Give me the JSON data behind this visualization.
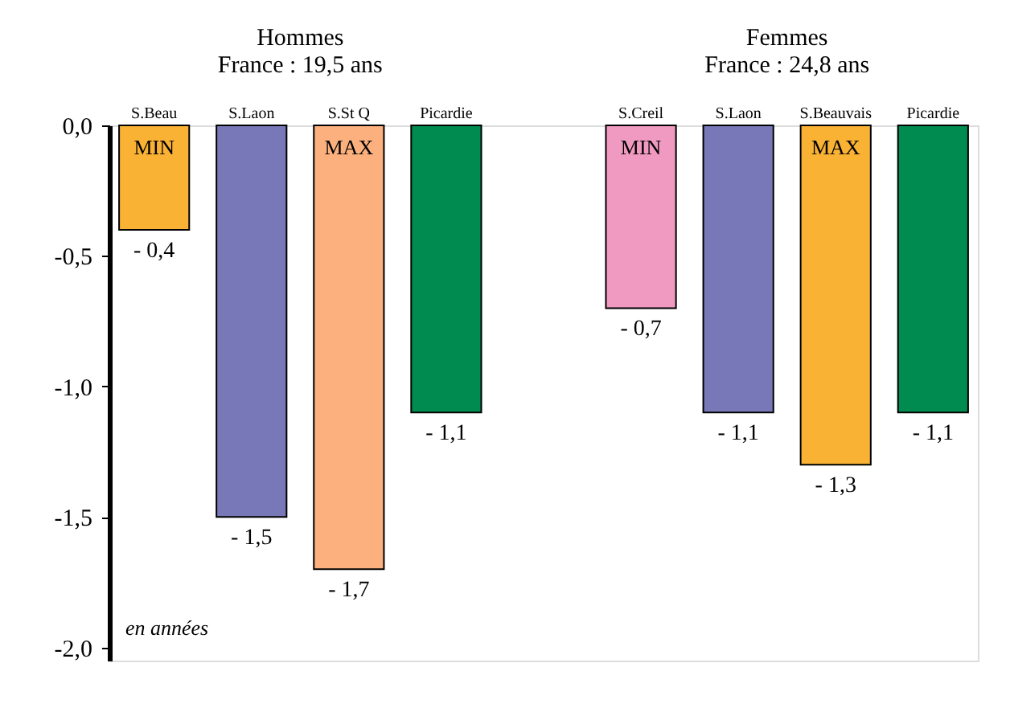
{
  "chart_data": {
    "type": "bar",
    "categories": [
      "S.Beau",
      "S.Laon",
      "S.St Q",
      "Picardie",
      null,
      "S.Creil",
      "S.Laon",
      "S.Beauvais",
      "Picardie"
    ],
    "values": [
      -0.4,
      -1.5,
      -1.7,
      -1.1,
      null,
      -0.7,
      -1.1,
      -1.3,
      -1.1
    ],
    "colors": [
      "#f9b233",
      "#7878b8",
      "#fbb07e",
      "#008c50",
      "#ffffff",
      "#f19ac1",
      "#7878b8",
      "#f9b233",
      "#008c50"
    ],
    "value_labels": [
      "- 0,4",
      "- 1,5",
      "- 1,7",
      "- 1,1",
      null,
      "- 0,7",
      "- 1,1",
      "- 1,3",
      "- 1,1"
    ],
    "ylim": [
      -2.05,
      0.0
    ],
    "yticks": [
      {
        "value": 0.0,
        "label": "0,0"
      },
      {
        "value": -0.5,
        "label": "-0,5"
      },
      {
        "value": -1.0,
        "label": "-1,0"
      },
      {
        "value": -1.5,
        "label": "-1,5"
      },
      {
        "value": -2.0,
        "label": "-2,0"
      }
    ],
    "annotations": [
      "Hommes\nFrance : 19,5 ans",
      "Femmes\nFrance : 24,8 ans",
      "en années",
      "MIN",
      "MAX",
      "MIN",
      "MAX"
    ],
    "grid": false
  }
}
